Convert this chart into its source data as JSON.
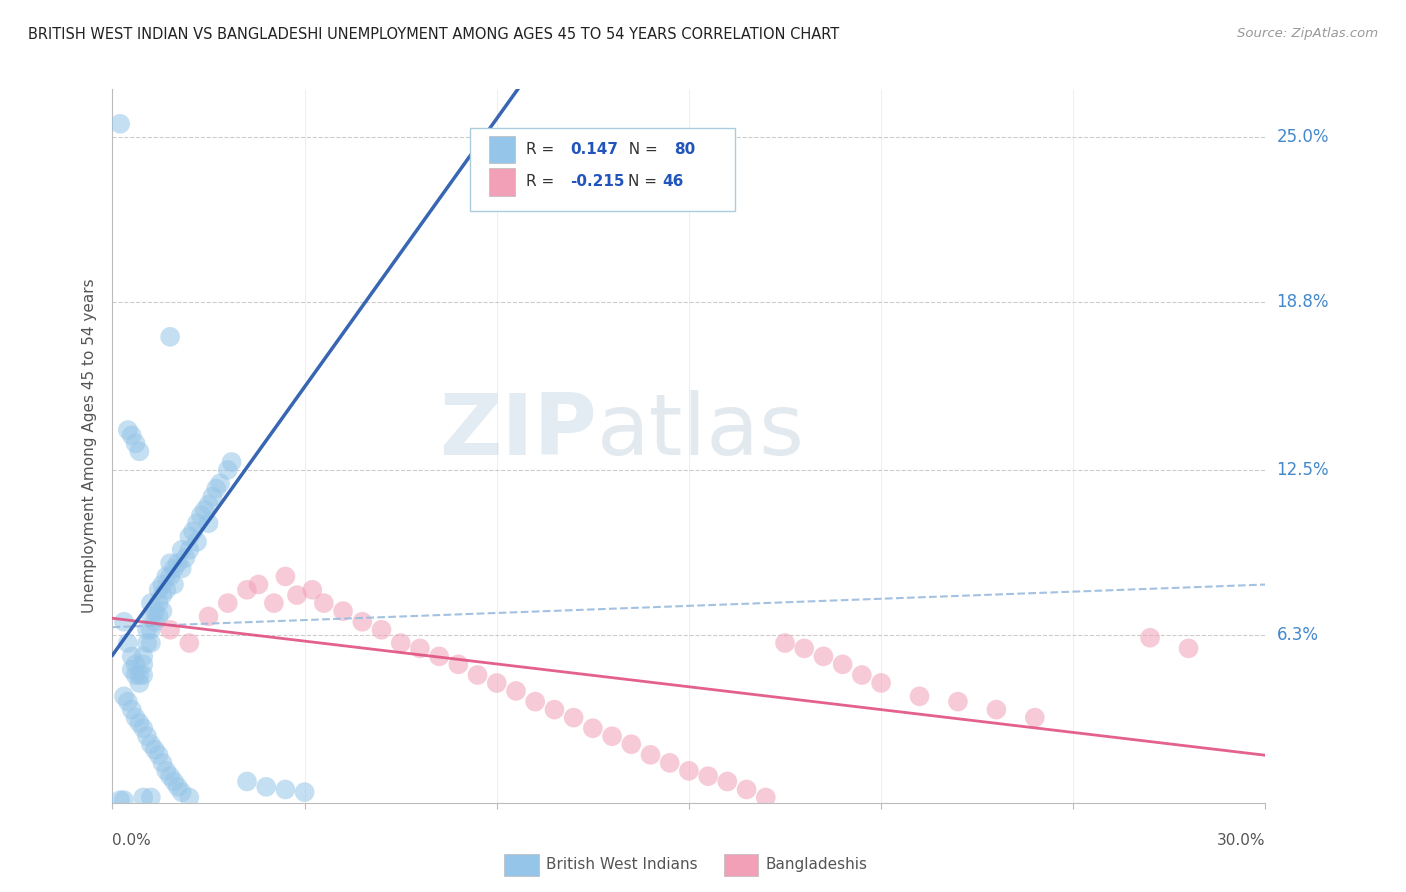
{
  "title": "BRITISH WEST INDIAN VS BANGLADESHI UNEMPLOYMENT AMONG AGES 45 TO 54 YEARS CORRELATION CHART",
  "source": "Source: ZipAtlas.com",
  "ylabel": "Unemployment Among Ages 45 to 54 years",
  "ytick_labels": [
    "6.3%",
    "12.5%",
    "18.8%",
    "25.0%"
  ],
  "ytick_values": [
    0.063,
    0.125,
    0.188,
    0.25
  ],
  "xlim": [
    0.0,
    0.3
  ],
  "ylim": [
    0.0,
    0.268
  ],
  "legend1_R": "0.147",
  "legend1_N": "80",
  "legend2_R": "-0.215",
  "legend2_N": "46",
  "blue_color": "#95C5E8",
  "pink_color": "#F2A0B8",
  "trend_blue_solid_color": "#2255AA",
  "trend_blue_dash_color": "#99BBDD",
  "trend_pink_color": "#E05080",
  "watermark_zip": "ZIP",
  "watermark_atlas": "atlas",
  "blue_points_x": [
    0.002,
    0.003,
    0.004,
    0.005,
    0.005,
    0.006,
    0.006,
    0.007,
    0.007,
    0.008,
    0.008,
    0.008,
    0.009,
    0.009,
    0.01,
    0.01,
    0.01,
    0.01,
    0.011,
    0.011,
    0.012,
    0.012,
    0.012,
    0.013,
    0.013,
    0.013,
    0.014,
    0.014,
    0.015,
    0.015,
    0.016,
    0.016,
    0.017,
    0.018,
    0.018,
    0.019,
    0.02,
    0.02,
    0.021,
    0.022,
    0.022,
    0.023,
    0.024,
    0.025,
    0.025,
    0.026,
    0.027,
    0.028,
    0.03,
    0.031,
    0.003,
    0.004,
    0.005,
    0.006,
    0.007,
    0.008,
    0.009,
    0.01,
    0.011,
    0.012,
    0.013,
    0.014,
    0.015,
    0.016,
    0.017,
    0.018,
    0.004,
    0.005,
    0.006,
    0.007,
    0.035,
    0.04,
    0.045,
    0.05,
    0.015,
    0.02,
    0.01,
    0.008,
    0.003,
    0.002
  ],
  "blue_points_y": [
    0.255,
    0.068,
    0.06,
    0.055,
    0.05,
    0.052,
    0.048,
    0.048,
    0.045,
    0.055,
    0.052,
    0.048,
    0.065,
    0.06,
    0.075,
    0.07,
    0.065,
    0.06,
    0.072,
    0.068,
    0.08,
    0.075,
    0.07,
    0.082,
    0.078,
    0.072,
    0.085,
    0.08,
    0.09,
    0.085,
    0.088,
    0.082,
    0.09,
    0.095,
    0.088,
    0.092,
    0.1,
    0.095,
    0.102,
    0.105,
    0.098,
    0.108,
    0.11,
    0.112,
    0.105,
    0.115,
    0.118,
    0.12,
    0.125,
    0.128,
    0.04,
    0.038,
    0.035,
    0.032,
    0.03,
    0.028,
    0.025,
    0.022,
    0.02,
    0.018,
    0.015,
    0.012,
    0.01,
    0.008,
    0.006,
    0.004,
    0.14,
    0.138,
    0.135,
    0.132,
    0.008,
    0.006,
    0.005,
    0.004,
    0.175,
    0.002,
    0.002,
    0.002,
    0.001,
    0.001
  ],
  "pink_points_x": [
    0.015,
    0.02,
    0.025,
    0.03,
    0.035,
    0.038,
    0.042,
    0.045,
    0.048,
    0.052,
    0.055,
    0.06,
    0.065,
    0.07,
    0.075,
    0.08,
    0.085,
    0.09,
    0.095,
    0.1,
    0.105,
    0.11,
    0.115,
    0.12,
    0.125,
    0.13,
    0.135,
    0.14,
    0.145,
    0.15,
    0.155,
    0.16,
    0.165,
    0.17,
    0.175,
    0.18,
    0.185,
    0.19,
    0.195,
    0.2,
    0.21,
    0.22,
    0.23,
    0.24,
    0.27,
    0.28
  ],
  "pink_points_y": [
    0.065,
    0.06,
    0.07,
    0.075,
    0.08,
    0.082,
    0.075,
    0.085,
    0.078,
    0.08,
    0.075,
    0.072,
    0.068,
    0.065,
    0.06,
    0.058,
    0.055,
    0.052,
    0.048,
    0.045,
    0.042,
    0.038,
    0.035,
    0.032,
    0.028,
    0.025,
    0.022,
    0.018,
    0.015,
    0.012,
    0.01,
    0.008,
    0.005,
    0.002,
    0.06,
    0.058,
    0.055,
    0.052,
    0.048,
    0.045,
    0.04,
    0.038,
    0.035,
    0.032,
    0.062,
    0.058
  ]
}
